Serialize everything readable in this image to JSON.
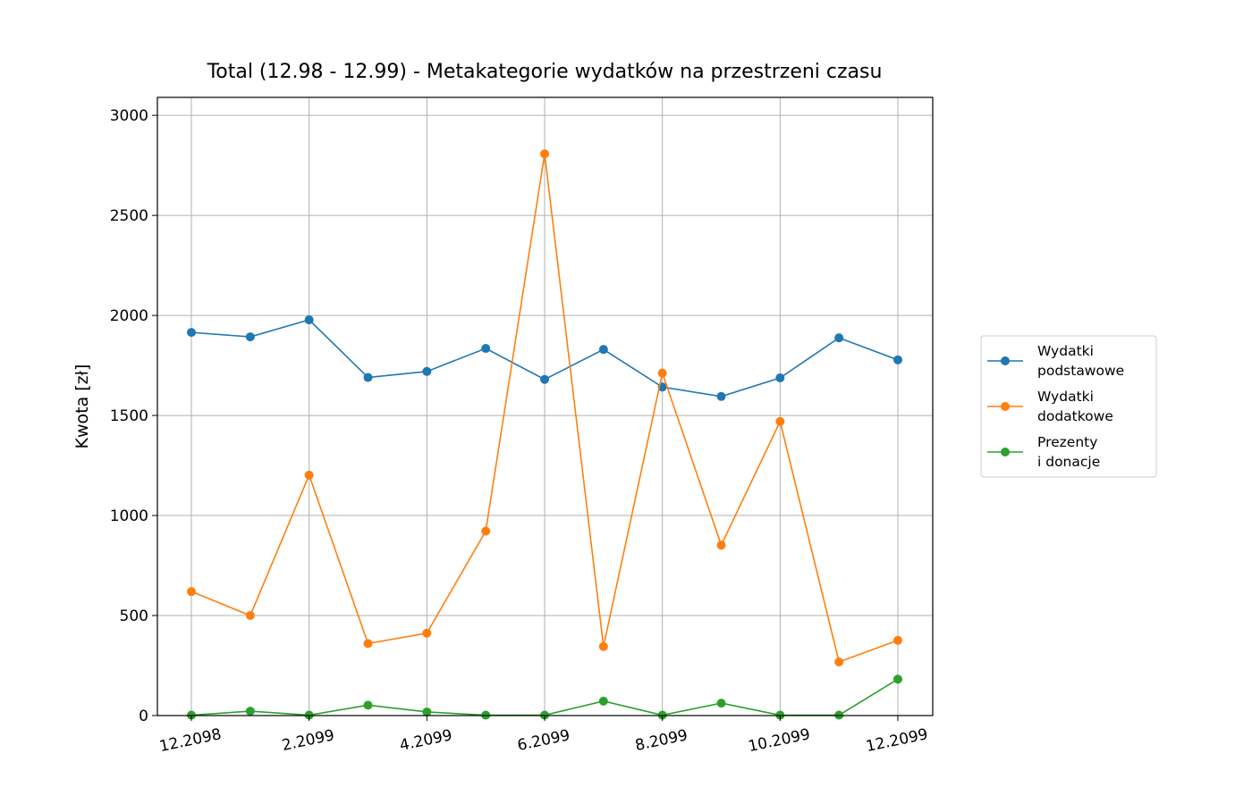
{
  "chart_data": {
    "type": "line",
    "title": "Total (12.98 - 12.99) - Metakategorie wydatków na przestrzeni czasu",
    "xlabel": "",
    "ylabel": "Kwota [zł]",
    "x": [
      "12.2098",
      "1.2099",
      "2.2099",
      "3.2099",
      "4.2099",
      "5.2099",
      "6.2099",
      "7.2099",
      "8.2099",
      "9.2099",
      "10.2099",
      "11.2099",
      "12.2099"
    ],
    "x_tick_labels": [
      "12.2098",
      "2.2099",
      "4.2099",
      "6.2099",
      "8.2099",
      "10.2099",
      "12.2099"
    ],
    "ylim": [
      0,
      3090
    ],
    "y_ticks": [
      0,
      500,
      1000,
      1500,
      2000,
      2500,
      3000
    ],
    "grid": true,
    "legend_position": "outside right",
    "series": [
      {
        "name": "Wydatki\npodstawowe",
        "name_lines": [
          "Wydatki",
          "podstawowe"
        ],
        "color": "#1f77b4",
        "values": [
          1915,
          1893,
          1978,
          1690,
          1720,
          1835,
          1680,
          1830,
          1642,
          1595,
          1688,
          1888,
          1778
        ]
      },
      {
        "name": "Wydatki\ndodatkowe",
        "name_lines": [
          "Wydatki",
          "dodatkowe"
        ],
        "color": "#ff7f0e",
        "values": [
          620,
          500,
          1202,
          360,
          412,
          922,
          2808,
          345,
          1712,
          852,
          1470,
          268,
          376
        ]
      },
      {
        "name": "Prezenty\ni donacje",
        "name_lines": [
          "Prezenty",
          "i donacje"
        ],
        "color": "#2ca02c",
        "values": [
          2,
          22,
          2,
          52,
          18,
          2,
          2,
          72,
          2,
          62,
          2,
          2,
          182
        ]
      }
    ]
  }
}
